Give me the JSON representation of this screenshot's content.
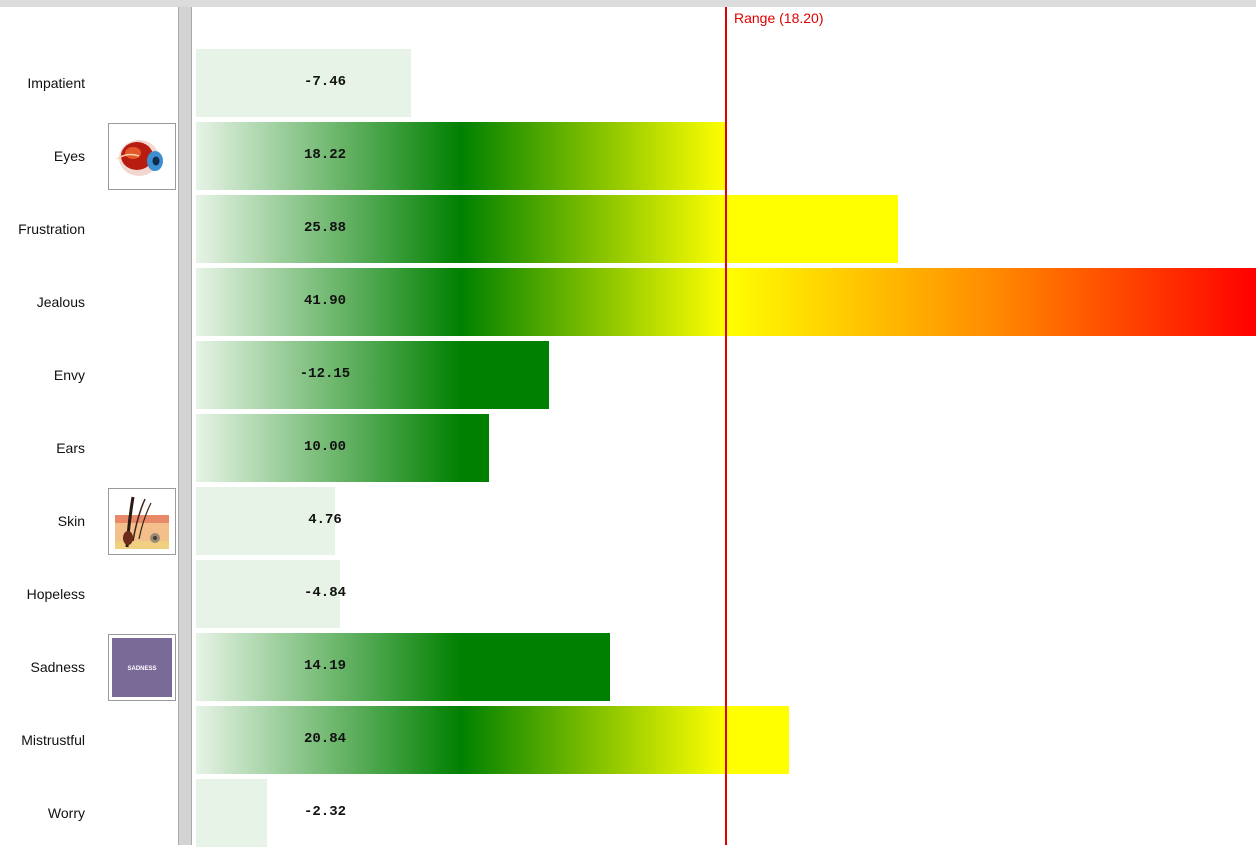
{
  "chart_data": {
    "type": "bar",
    "orientation": "horizontal",
    "categories": [
      "Impatient",
      "Eyes",
      "Frustration",
      "Jealous",
      "Envy",
      "Ears",
      "Skin",
      "Hopeless",
      "Sadness",
      "Mistrustful",
      "Worry"
    ],
    "values": [
      -7.46,
      18.22,
      25.88,
      41.9,
      -12.15,
      10.0,
      4.76,
      -4.84,
      14.19,
      20.84,
      -2.32
    ],
    "value_labels": [
      "-7.46",
      "18.22",
      "25.88",
      "41.90",
      "-12.15",
      "10.00",
      "4.76",
      "-4.84",
      "14.19",
      "20.84",
      "-2.32"
    ],
    "bar_magnitudes": [
      8.5,
      21.0,
      27.8,
      42.0,
      14.0,
      11.6,
      5.5,
      5.7,
      16.4,
      23.5,
      2.8
    ],
    "xlim": [
      0,
      42
    ],
    "reference_line": {
      "label": "Range (18.20)",
      "value": 21.0,
      "color": "#e00000"
    },
    "gradient_colors": [
      "#e6f3e6",
      "#008000",
      "#ffff00",
      "#ff8c00",
      "#ff0000"
    ],
    "grid": false,
    "legend": "none"
  },
  "thumbnails": [
    {
      "row": "Eyes",
      "icon": "eye-anatomy-icon"
    },
    {
      "row": "Skin",
      "icon": "skin-hair-anatomy-icon"
    },
    {
      "row": "Sadness",
      "icon": "sadness-card-icon",
      "text": "SADNESS"
    }
  ]
}
